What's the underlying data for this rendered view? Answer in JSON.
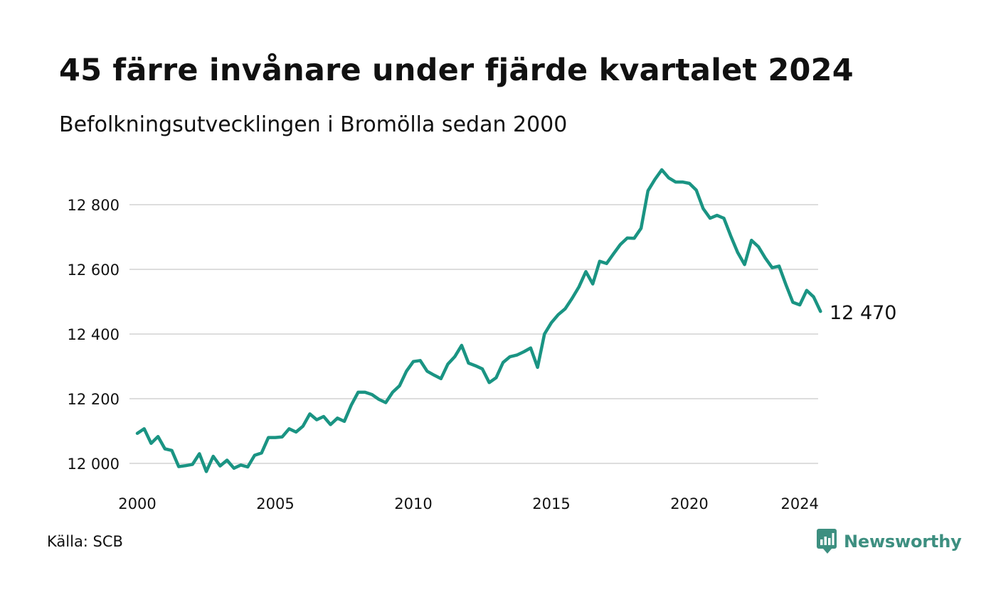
{
  "title": "45 färre invånare under fjärde kvartalet 2024",
  "subtitle": "Befolkningsutvecklingen i Bromölla sedan 2000",
  "source": "Källa: SCB",
  "brand": {
    "name": "Newsworthy",
    "icon": "newsworthy-logo-icon",
    "color": "#3d8f80"
  },
  "colors": {
    "line": "#1a9483",
    "grid": "#dddddd",
    "text": "#111111"
  },
  "chart_data": {
    "type": "line",
    "title": "45 färre invånare under fjärde kvartalet 2024",
    "subtitle": "Befolkningsutvecklingen i Bromölla sedan 2000",
    "xlabel": "",
    "ylabel": "",
    "x_ticks": [
      "2000",
      "2005",
      "2010",
      "2015",
      "2020",
      "2024"
    ],
    "y_ticks": [
      "12 000",
      "12 200",
      "12 400",
      "12 600",
      "12 800"
    ],
    "ylim": [
      11965,
      12950
    ],
    "grid": true,
    "last_value_label": "12 470",
    "series": [
      {
        "frequency": "quarterly",
        "start": "2000 Q1",
        "values": [
          12093,
          12107,
          12062,
          12083,
          12045,
          12040,
          11990,
          11993,
          11997,
          12030,
          11975,
          12022,
          11992,
          12010,
          11985,
          11995,
          11989,
          12025,
          12032,
          12080,
          12080,
          12082,
          12107,
          12097,
          12115,
          12153,
          12135,
          12145,
          12120,
          12140,
          12130,
          12180,
          12220,
          12220,
          12213,
          12198,
          12188,
          12220,
          12240,
          12285,
          12315,
          12318,
          12285,
          12273,
          12262,
          12307,
          12330,
          12365,
          12310,
          12302,
          12292,
          12250,
          12265,
          12312,
          12330,
          12335,
          12345,
          12357,
          12297,
          12400,
          12435,
          12460,
          12478,
          12510,
          12546,
          12593,
          12555,
          12625,
          12618,
          12648,
          12677,
          12697,
          12696,
          12727,
          12843,
          12878,
          12908,
          12883,
          12870,
          12870,
          12866,
          12845,
          12788,
          12758,
          12767,
          12758,
          12703,
          12652,
          12615,
          12690,
          12670,
          12635,
          12605,
          12610,
          12552,
          12498,
          12490,
          12535,
          12515,
          12470
        ]
      }
    ]
  }
}
